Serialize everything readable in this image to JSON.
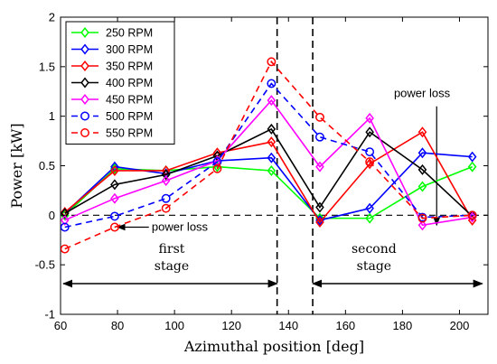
{
  "chart_data": {
    "type": "line",
    "xlabel": "Azimuthal position [deg]",
    "ylabel": "Power [kW]",
    "xlim": [
      60,
      210
    ],
    "ylim": [
      -1,
      2
    ],
    "xticks": [
      60,
      80,
      100,
      120,
      140,
      160,
      180,
      200
    ],
    "yticks": [
      -1,
      -0.5,
      0,
      0.5,
      1,
      1.5,
      2
    ],
    "grid": false,
    "legend_position": "top-left",
    "series": [
      {
        "name": "250 RPM",
        "color": "#00ff00",
        "marker": "diamond",
        "dash": "solid",
        "x": [
          61.5,
          79,
          97,
          115,
          134,
          151,
          168.5,
          187,
          204.5
        ],
        "y": [
          0.0,
          0.47,
          0.45,
          0.49,
          0.45,
          -0.03,
          -0.03,
          0.29,
          0.49
        ]
      },
      {
        "name": "300 RPM",
        "color": "#0000ff",
        "marker": "diamond",
        "dash": "solid",
        "x": [
          61.5,
          79,
          97,
          115,
          134,
          151,
          168.5,
          187,
          204.5
        ],
        "y": [
          0.02,
          0.49,
          0.42,
          0.55,
          0.58,
          -0.05,
          0.07,
          0.63,
          0.59
        ]
      },
      {
        "name": "350 RPM",
        "color": "#ff0000",
        "marker": "diamond",
        "dash": "solid",
        "x": [
          61.5,
          79,
          97,
          115,
          134,
          151,
          168.5,
          187,
          204.5
        ],
        "y": [
          0.03,
          0.45,
          0.45,
          0.63,
          0.74,
          -0.07,
          0.52,
          0.84,
          -0.05
        ]
      },
      {
        "name": "400 RPM",
        "color": "#000000",
        "marker": "diamond",
        "dash": "solid",
        "x": [
          61.5,
          79,
          97,
          115,
          134,
          151,
          168.5,
          187,
          204.5
        ],
        "y": [
          0.02,
          0.31,
          0.41,
          0.6,
          0.87,
          0.08,
          0.84,
          0.46,
          -0.01
        ]
      },
      {
        "name": "450 RPM",
        "color": "#ff00ff",
        "marker": "diamond",
        "dash": "solid",
        "x": [
          61.5,
          79,
          97,
          115,
          134,
          151,
          168.5,
          187,
          204.5
        ],
        "y": [
          -0.05,
          0.17,
          0.35,
          0.55,
          1.16,
          0.49,
          0.98,
          -0.1,
          -0.02
        ]
      },
      {
        "name": "500 RPM",
        "color": "#0000ff",
        "marker": "circle",
        "dash": "dashed",
        "x": [
          61.5,
          79,
          97,
          115,
          134,
          151,
          168.5,
          187,
          204.5
        ],
        "y": [
          -0.12,
          -0.01,
          0.17,
          0.54,
          1.33,
          0.79,
          0.64,
          -0.02,
          0.0
        ]
      },
      {
        "name": "550 RPM",
        "color": "#ff0000",
        "marker": "circle",
        "dash": "dashed",
        "x": [
          61.5,
          79,
          97,
          115,
          134,
          151,
          168.5,
          187,
          204.5
        ],
        "y": [
          -0.34,
          -0.12,
          0.07,
          0.47,
          1.55,
          0.99,
          0.54,
          -0.03,
          0.0
        ]
      }
    ],
    "reference_lines": {
      "horizontal_dashed_y": 0,
      "vertical_dashed_x": [
        136,
        148.5
      ]
    },
    "annotations": [
      {
        "text": "power loss",
        "label_x": 177,
        "label_y": 1.23,
        "arrow_from": [
          192,
          1.1
        ],
        "arrow_to": [
          192,
          -0.1
        ]
      },
      {
        "text": "power loss",
        "label_x": 92,
        "label_y": -0.12,
        "arrow_from": [
          91,
          -0.12
        ],
        "arrow_to": [
          80,
          -0.12
        ]
      },
      {
        "text_lines": [
          "first",
          "stage"
        ],
        "x": 99,
        "y": -0.38,
        "span": [
          61,
          136
        ],
        "span_y": -0.69
      },
      {
        "text_lines": [
          "second",
          "stage"
        ],
        "x": 170,
        "y": -0.38,
        "span": [
          148.5,
          208
        ],
        "span_y": -0.69
      }
    ]
  }
}
